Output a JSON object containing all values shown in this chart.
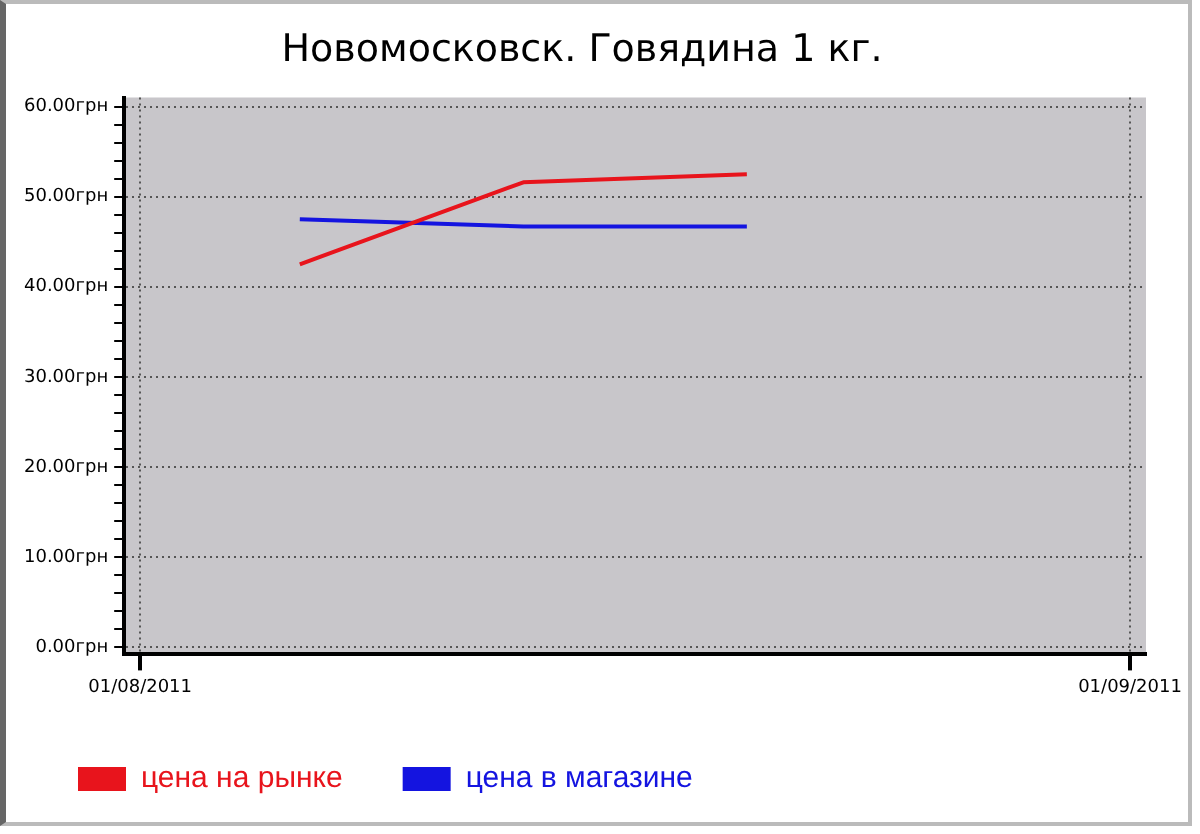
{
  "chart_data": {
    "type": "line",
    "title": "Новомосковск. Говядина 1 кг.",
    "x": [
      "2011-08-06",
      "2011-08-13",
      "2011-08-20"
    ],
    "series": [
      {
        "name": "цена на рынке",
        "color": "#e8141c",
        "values": [
          42.5,
          51.6,
          52.5
        ]
      },
      {
        "name": "цена в магазине",
        "color": "#1414e0",
        "values": [
          47.5,
          46.7,
          46.7
        ]
      }
    ],
    "xlim": [
      "2011-07-31T12:00",
      "2011-09-01T12:00"
    ],
    "xticks": [
      {
        "value": "2011-08-01",
        "label": "01/08/2011"
      },
      {
        "value": "2011-09-01",
        "label": "01/09/2011"
      }
    ],
    "ylim": [
      -0.8,
      61
    ],
    "yticks": [
      {
        "value": 0,
        "label": "0.00грн"
      },
      {
        "value": 2,
        "label": null
      },
      {
        "value": 4,
        "label": null
      },
      {
        "value": 6,
        "label": null
      },
      {
        "value": 8,
        "label": null
      },
      {
        "value": 10,
        "label": "10.00грн"
      },
      {
        "value": 12,
        "label": null
      },
      {
        "value": 14,
        "label": null
      },
      {
        "value": 16,
        "label": null
      },
      {
        "value": 18,
        "label": null
      },
      {
        "value": 20,
        "label": "20.00грн"
      },
      {
        "value": 22,
        "label": null
      },
      {
        "value": 24,
        "label": null
      },
      {
        "value": 26,
        "label": null
      },
      {
        "value": 28,
        "label": null
      },
      {
        "value": 30,
        "label": "30.00грн"
      },
      {
        "value": 32,
        "label": null
      },
      {
        "value": 34,
        "label": null
      },
      {
        "value": 36,
        "label": null
      },
      {
        "value": 38,
        "label": null
      },
      {
        "value": 40,
        "label": "40.00грн"
      },
      {
        "value": 42,
        "label": null
      },
      {
        "value": 44,
        "label": null
      },
      {
        "value": 46,
        "label": null
      },
      {
        "value": 48,
        "label": null
      },
      {
        "value": 50,
        "label": "50.00грн"
      },
      {
        "value": 52,
        "label": null
      },
      {
        "value": 54,
        "label": null
      },
      {
        "value": 56,
        "label": null
      },
      {
        "value": 58,
        "label": null
      },
      {
        "value": 60,
        "label": "60.00грн"
      }
    ],
    "grid": true,
    "legend": "bottom left",
    "marker": "none",
    "line_style": "solid"
  }
}
